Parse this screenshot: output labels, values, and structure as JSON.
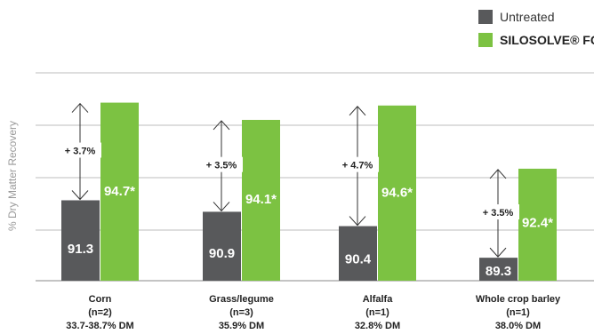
{
  "chart_data": {
    "type": "bar",
    "title": "",
    "xlabel": "",
    "ylabel": "% Dry Matter Recovery",
    "ylim": [
      88.5,
      95.8
    ],
    "grid": true,
    "legend_position": "top-right",
    "categories": [
      [
        "Corn",
        "(n=2)",
        "33.7-38.7% DM"
      ],
      [
        "Grass/legume",
        "(n=3)",
        "35.9% DM"
      ],
      [
        "Alfalfa",
        "(n=1)",
        "32.8% DM"
      ],
      [
        "Whole crop barley",
        "(n=1)",
        "38.0% DM"
      ]
    ],
    "series": [
      {
        "name": "Untreated",
        "color": "#58595b",
        "values": [
          91.3,
          90.9,
          90.4,
          89.3
        ],
        "labels": [
          "91.3",
          "90.9",
          "90.4",
          "89.3"
        ]
      },
      {
        "name": "SILOSOLVE® FC",
        "color": "#7cc242",
        "values": [
          94.7,
          94.1,
          94.6,
          92.4
        ],
        "labels": [
          "94.7*",
          "94.1*",
          "94.6*",
          "92.4*"
        ]
      }
    ],
    "differences": [
      "+ 3.7%",
      "+ 3.5%",
      "+ 4.7%",
      "+ 3.5%"
    ]
  }
}
